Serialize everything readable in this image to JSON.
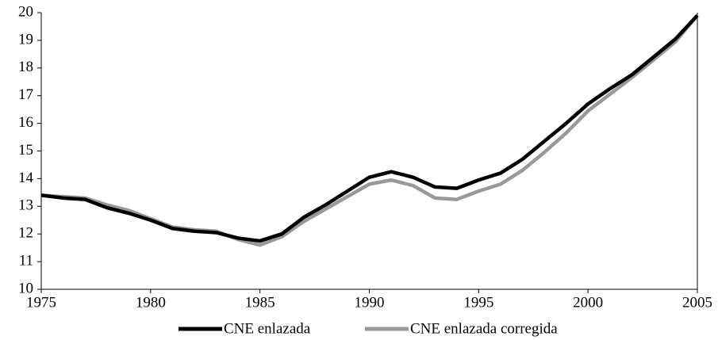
{
  "chart_data": {
    "type": "line",
    "x": [
      1975,
      1976,
      1977,
      1978,
      1979,
      1980,
      1981,
      1982,
      1983,
      1984,
      1985,
      1986,
      1987,
      1988,
      1989,
      1990,
      1991,
      1992,
      1993,
      1994,
      1995,
      1996,
      1997,
      1998,
      1999,
      2000,
      2001,
      2002,
      2003,
      2004,
      2005
    ],
    "series": [
      {
        "name": "CNE enlazada",
        "color": "#000000",
        "values": [
          13.4,
          13.3,
          13.25,
          12.95,
          12.75,
          12.5,
          12.2,
          12.1,
          12.05,
          11.85,
          11.75,
          12.0,
          12.6,
          13.05,
          13.55,
          14.05,
          14.25,
          14.05,
          13.7,
          13.65,
          13.95,
          14.2,
          14.7,
          15.35,
          16.0,
          16.7,
          17.25,
          17.75,
          18.4,
          19.05,
          19.9
        ]
      },
      {
        "name": "CNE enlazada corregida",
        "color": "#999999",
        "values": [
          13.4,
          13.35,
          13.3,
          13.05,
          12.85,
          12.55,
          12.25,
          12.15,
          12.1,
          11.8,
          11.6,
          11.9,
          12.45,
          12.9,
          13.35,
          13.8,
          13.95,
          13.75,
          13.3,
          13.25,
          13.55,
          13.8,
          14.3,
          14.95,
          15.65,
          16.45,
          17.05,
          17.65,
          18.3,
          18.95,
          19.9
        ]
      }
    ],
    "xlim": [
      1975,
      2005
    ],
    "xticks": [
      1975,
      1980,
      1985,
      1990,
      1995,
      2000,
      2005
    ],
    "ylim": [
      10,
      20
    ],
    "yticks": [
      10,
      11,
      12,
      13,
      14,
      15,
      16,
      17,
      18,
      19,
      20
    ],
    "legend": "bottom"
  }
}
